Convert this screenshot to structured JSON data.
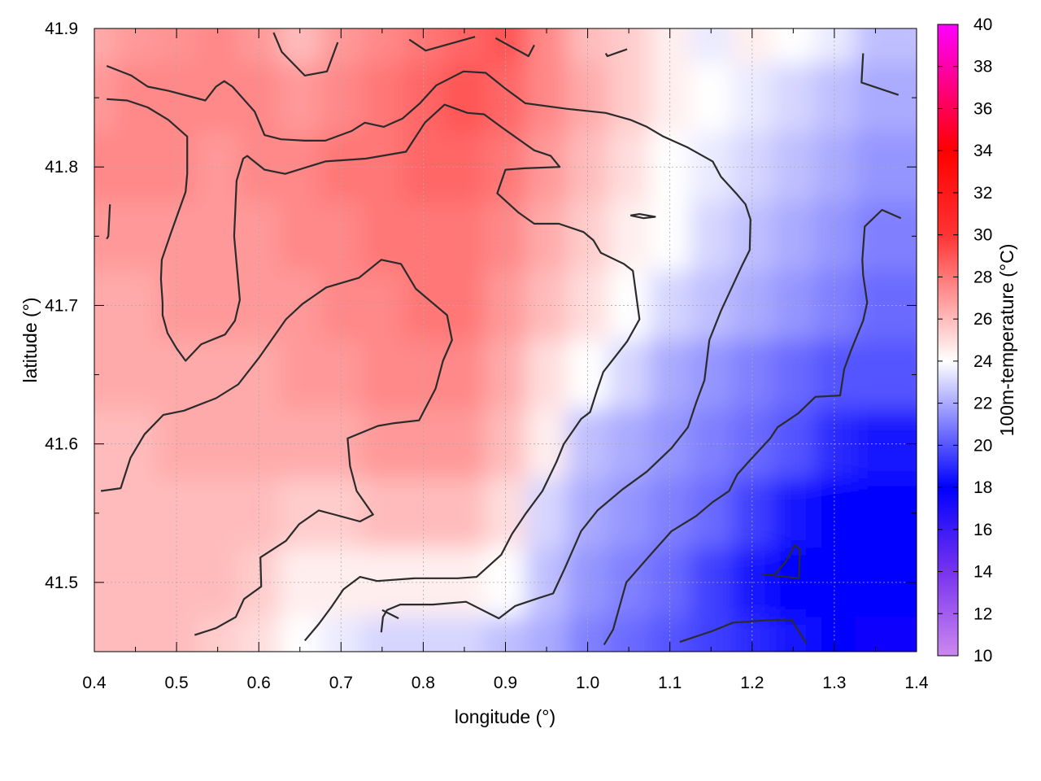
{
  "chart_data": {
    "type": "heatmap",
    "title": "",
    "xlabel": "longitude (°)",
    "ylabel": "latitude (°)",
    "colorbar_label": "100m-temperature (°C)",
    "xlim": [
      0.4,
      1.4
    ],
    "ylim": [
      41.45,
      41.9
    ],
    "x_ticks": [
      "0.4",
      "0.5",
      "0.6",
      "0.7",
      "0.8",
      "0.9",
      "1.0",
      "1.1",
      "1.2",
      "1.3",
      "1.4"
    ],
    "y_ticks": [
      "41.5",
      "41.6",
      "41.7",
      "41.8",
      "41.9"
    ],
    "colorbar_range": [
      10,
      40
    ],
    "colorbar_ticks": [
      "10",
      "12",
      "14",
      "16",
      "18",
      "20",
      "22",
      "24",
      "26",
      "28",
      "30",
      "32",
      "34",
      "36",
      "38",
      "40"
    ],
    "colormap": [
      {
        "value": 10,
        "color": "#cc88ee"
      },
      {
        "value": 14,
        "color": "#7733ee"
      },
      {
        "value": 18,
        "color": "#0000ff"
      },
      {
        "value": 24,
        "color": "#ffffff"
      },
      {
        "value": 30,
        "color": "#ff3333"
      },
      {
        "value": 34,
        "color": "#ff0000"
      },
      {
        "value": 40,
        "color": "#ff00ff"
      }
    ],
    "grid": true,
    "temperature_field": {
      "note_lon": [
        0.4,
        0.45,
        0.5,
        0.55,
        0.6,
        0.65,
        0.7,
        0.75,
        0.8,
        0.85,
        0.9,
        0.95,
        1.0,
        1.05,
        1.1,
        1.15,
        1.2,
        1.25,
        1.3,
        1.35,
        1.4
      ],
      "lat": [
        41.9,
        41.85,
        41.8,
        41.75,
        41.7,
        41.65,
        41.6,
        41.55,
        41.5,
        41.45
      ],
      "values": [
        [
          26.5,
          27.0,
          27.2,
          27.5,
          27.0,
          26.0,
          27.0,
          27.5,
          28.0,
          28.5,
          29.0,
          27.5,
          26.0,
          25.5,
          24.5,
          23.5,
          24.5,
          24.0,
          23.5,
          22.5,
          22.5
        ],
        [
          27.0,
          27.5,
          27.5,
          27.5,
          27.5,
          27.0,
          27.5,
          28.0,
          28.5,
          29.0,
          28.5,
          27.5,
          26.5,
          25.5,
          24.5,
          24.0,
          23.5,
          23.0,
          22.5,
          22.0,
          22.0
        ],
        [
          27.5,
          27.5,
          27.5,
          27.0,
          27.5,
          27.5,
          28.0,
          28.0,
          28.5,
          28.5,
          28.0,
          27.0,
          26.0,
          25.0,
          24.0,
          23.5,
          23.0,
          22.5,
          22.0,
          21.5,
          21.5
        ],
        [
          27.0,
          27.0,
          27.0,
          27.0,
          27.0,
          27.5,
          27.5,
          28.0,
          28.0,
          28.0,
          27.5,
          26.5,
          25.5,
          24.5,
          24.0,
          23.0,
          22.5,
          22.0,
          21.5,
          21.0,
          21.0
        ],
        [
          26.5,
          26.5,
          27.0,
          27.0,
          27.0,
          27.0,
          27.5,
          27.5,
          28.0,
          28.0,
          27.0,
          26.0,
          25.0,
          24.0,
          23.0,
          22.5,
          22.0,
          21.5,
          21.0,
          20.5,
          20.5
        ],
        [
          26.5,
          26.5,
          26.5,
          26.5,
          26.5,
          27.0,
          27.0,
          27.5,
          27.5,
          27.5,
          26.5,
          25.0,
          24.0,
          23.0,
          22.0,
          21.5,
          21.0,
          20.5,
          20.0,
          20.0,
          20.0
        ],
        [
          26.0,
          26.0,
          26.5,
          26.5,
          26.5,
          26.5,
          26.5,
          27.0,
          27.0,
          27.0,
          26.0,
          24.5,
          22.5,
          22.0,
          21.5,
          21.0,
          20.5,
          20.0,
          19.0,
          18.5,
          18.5
        ],
        [
          26.0,
          26.0,
          26.0,
          26.0,
          26.0,
          25.5,
          25.5,
          26.0,
          26.0,
          26.0,
          25.0,
          23.0,
          22.0,
          21.5,
          21.0,
          20.5,
          19.5,
          18.5,
          18.0,
          18.0,
          18.0
        ],
        [
          26.0,
          26.0,
          26.0,
          26.0,
          25.5,
          24.5,
          24.5,
          24.5,
          24.5,
          24.5,
          24.0,
          22.5,
          21.5,
          21.0,
          20.5,
          19.5,
          18.5,
          18.0,
          18.0,
          18.0,
          18.0
        ],
        [
          26.0,
          26.0,
          26.0,
          25.5,
          25.0,
          24.0,
          23.5,
          23.0,
          23.0,
          23.0,
          22.5,
          22.0,
          21.0,
          20.5,
          20.0,
          19.5,
          19.0,
          18.5,
          18.0,
          17.5,
          17.5
        ]
      ]
    },
    "contours": [
      [
        [
          0.415,
          41.873
        ],
        [
          0.445,
          41.866
        ],
        [
          0.465,
          41.858
        ],
        [
          0.49,
          41.855
        ],
        [
          0.535,
          41.848
        ],
        [
          0.548,
          41.858
        ],
        [
          0.558,
          41.862
        ],
        [
          0.568,
          41.858
        ],
        [
          0.595,
          41.84
        ],
        [
          0.607,
          41.823
        ],
        [
          0.627,
          41.82
        ],
        [
          0.656,
          41.819
        ],
        [
          0.681,
          41.819
        ],
        [
          0.713,
          41.826
        ],
        [
          0.729,
          41.832
        ],
        [
          0.752,
          41.829
        ],
        [
          0.775,
          41.835
        ],
        [
          0.796,
          41.846
        ],
        [
          0.816,
          41.859
        ],
        [
          0.849,
          41.869
        ],
        [
          0.876,
          41.868
        ],
        [
          0.899,
          41.857
        ],
        [
          0.924,
          41.846
        ],
        [
          0.974,
          41.842
        ],
        [
          1.022,
          41.839
        ],
        [
          1.052,
          41.834
        ],
        [
          1.072,
          41.829
        ],
        [
          1.092,
          41.822
        ],
        [
          1.122,
          41.814
        ],
        [
          1.152,
          41.804
        ],
        [
          1.162,
          41.793
        ],
        [
          1.182,
          41.78
        ],
        [
          1.192,
          41.773
        ],
        [
          1.198,
          41.762
        ],
        [
          1.197,
          41.74
        ],
        [
          1.187,
          41.728
        ],
        [
          1.162,
          41.696
        ],
        [
          1.148,
          41.675
        ],
        [
          1.142,
          41.646
        ],
        [
          1.132,
          41.63
        ],
        [
          1.122,
          41.612
        ],
        [
          1.102,
          41.597
        ],
        [
          1.072,
          41.58
        ],
        [
          1.042,
          41.567
        ],
        [
          1.012,
          41.552
        ],
        [
          0.992,
          41.537
        ],
        [
          0.972,
          41.51
        ],
        [
          0.958,
          41.492
        ],
        [
          0.942,
          41.489
        ],
        [
          0.912,
          41.483
        ],
        [
          0.892,
          41.474
        ],
        [
          0.852,
          41.486
        ],
        [
          0.812,
          41.484
        ],
        [
          0.772,
          41.484
        ],
        [
          0.756,
          41.48
        ],
        [
          0.751,
          41.475
        ],
        [
          0.749,
          41.464
        ]
      ],
      [
        [
          0.415,
          41.849
        ],
        [
          0.44,
          41.848
        ],
        [
          0.465,
          41.843
        ],
        [
          0.49,
          41.834
        ],
        [
          0.513,
          41.822
        ],
        [
          0.513,
          41.811
        ],
        [
          0.513,
          41.795
        ],
        [
          0.511,
          41.782
        ],
        [
          0.502,
          41.767
        ],
        [
          0.493,
          41.752
        ],
        [
          0.482,
          41.733
        ],
        [
          0.481,
          41.719
        ],
        [
          0.483,
          41.702
        ],
        [
          0.483,
          41.693
        ],
        [
          0.489,
          41.68
        ],
        [
          0.5,
          41.669
        ],
        [
          0.511,
          41.66
        ],
        [
          0.53,
          41.672
        ],
        [
          0.559,
          41.679
        ],
        [
          0.571,
          41.689
        ],
        [
          0.577,
          41.704
        ],
        [
          0.57,
          41.75
        ],
        [
          0.573,
          41.79
        ],
        [
          0.581,
          41.806
        ],
        [
          0.586,
          41.808
        ],
        [
          0.607,
          41.798
        ],
        [
          0.632,
          41.795
        ],
        [
          0.681,
          41.804
        ],
        [
          0.73,
          41.806
        ],
        [
          0.779,
          41.811
        ],
        [
          0.802,
          41.832
        ],
        [
          0.826,
          41.845
        ],
        [
          0.854,
          41.839
        ],
        [
          0.874,
          41.838
        ],
        [
          0.897,
          41.828
        ],
        [
          0.935,
          41.812
        ],
        [
          0.955,
          41.808
        ],
        [
          0.966,
          41.8
        ],
        [
          0.923,
          41.799
        ],
        [
          0.9,
          41.798
        ],
        [
          0.89,
          41.781
        ],
        [
          0.916,
          41.767
        ],
        [
          0.935,
          41.759
        ],
        [
          0.965,
          41.759
        ],
        [
          0.995,
          41.753
        ],
        [
          1.007,
          41.747
        ],
        [
          1.016,
          41.738
        ],
        [
          1.044,
          41.73
        ],
        [
          1.055,
          41.725
        ],
        [
          1.063,
          41.69
        ],
        [
          1.048,
          41.674
        ],
        [
          1.019,
          41.652
        ],
        [
          1.011,
          41.638
        ],
        [
          1.003,
          41.623
        ],
        [
          0.992,
          41.618
        ],
        [
          0.971,
          41.6
        ],
        [
          0.962,
          41.587
        ],
        [
          0.945,
          41.566
        ],
        [
          0.925,
          41.55
        ],
        [
          0.908,
          41.535
        ],
        [
          0.895,
          41.52
        ],
        [
          0.865,
          41.504
        ],
        [
          0.842,
          41.503
        ],
        [
          0.79,
          41.503
        ],
        [
          0.744,
          41.501
        ],
        [
          0.723,
          41.504
        ],
        [
          0.703,
          41.495
        ],
        [
          0.688,
          41.482
        ],
        [
          0.673,
          41.47
        ],
        [
          0.656,
          41.458
        ]
      ],
      [
        [
          0.408,
          41.566
        ],
        [
          0.432,
          41.568
        ],
        [
          0.444,
          41.59
        ],
        [
          0.461,
          41.607
        ],
        [
          0.484,
          41.621
        ],
        [
          0.509,
          41.624
        ],
        [
          0.548,
          41.633
        ],
        [
          0.575,
          41.643
        ],
        [
          0.6,
          41.662
        ],
        [
          0.633,
          41.69
        ],
        [
          0.653,
          41.701
        ],
        [
          0.682,
          41.713
        ],
        [
          0.722,
          41.72
        ],
        [
          0.749,
          41.733
        ],
        [
          0.773,
          41.73
        ],
        [
          0.791,
          41.712
        ],
        [
          0.829,
          41.693
        ],
        [
          0.835,
          41.675
        ],
        [
          0.824,
          41.66
        ],
        [
          0.815,
          41.64
        ],
        [
          0.795,
          41.617
        ],
        [
          0.765,
          41.615
        ],
        [
          0.745,
          41.613
        ],
        [
          0.708,
          41.604
        ],
        [
          0.711,
          41.584
        ],
        [
          0.719,
          41.566
        ],
        [
          0.739,
          41.549
        ],
        [
          0.723,
          41.544
        ],
        [
          0.692,
          41.549
        ],
        [
          0.673,
          41.552
        ],
        [
          0.649,
          41.542
        ],
        [
          0.633,
          41.53
        ],
        [
          0.602,
          41.518
        ],
        [
          0.603,
          41.497
        ],
        [
          0.582,
          41.488
        ],
        [
          0.572,
          41.475
        ],
        [
          0.548,
          41.467
        ],
        [
          0.522,
          41.462
        ]
      ],
      [
        [
          1.02,
          41.455
        ],
        [
          1.031,
          41.466
        ],
        [
          1.047,
          41.5
        ],
        [
          1.075,
          41.519
        ],
        [
          1.102,
          41.537
        ],
        [
          1.132,
          41.548
        ],
        [
          1.152,
          41.558
        ],
        [
          1.172,
          41.566
        ],
        [
          1.182,
          41.578
        ],
        [
          1.197,
          41.588
        ],
        [
          1.222,
          41.604
        ],
        [
          1.231,
          41.612
        ],
        [
          1.256,
          41.622
        ],
        [
          1.277,
          41.634
        ],
        [
          1.307,
          41.635
        ],
        [
          1.312,
          41.654
        ],
        [
          1.32,
          41.667
        ],
        [
          1.335,
          41.689
        ],
        [
          1.34,
          41.702
        ],
        [
          1.335,
          41.722
        ],
        [
          1.334,
          41.733
        ],
        [
          1.337,
          41.757
        ],
        [
          1.358,
          41.769
        ],
        [
          1.381,
          41.763
        ]
      ],
      [
        [
          1.112,
          41.457
        ],
        [
          1.152,
          41.465
        ],
        [
          1.177,
          41.471
        ],
        [
          1.227,
          41.473
        ],
        [
          1.248,
          41.473
        ],
        [
          1.266,
          41.456
        ]
      ],
      [
        [
          1.212,
          41.506
        ],
        [
          1.257,
          41.503
        ],
        [
          1.258,
          41.524
        ],
        [
          1.252,
          41.527
        ],
        [
          1.241,
          41.515
        ],
        [
          1.228,
          41.506
        ]
      ],
      [
        [
          1.052,
          41.765
        ],
        [
          1.068,
          41.763
        ],
        [
          1.082,
          41.764
        ],
        [
          1.063,
          41.766
        ],
        [
          1.052,
          41.765
        ]
      ],
      [
        [
          0.618,
          41.897
        ],
        [
          0.628,
          41.883
        ],
        [
          0.656,
          41.866
        ],
        [
          0.683,
          41.869
        ],
        [
          0.696,
          41.89
        ]
      ],
      [
        [
          0.783,
          41.892
        ],
        [
          0.803,
          41.884
        ],
        [
          0.863,
          41.894
        ]
      ],
      [
        [
          0.888,
          41.893
        ],
        [
          0.928,
          41.88
        ],
        [
          0.935,
          41.888
        ]
      ],
      [
        [
          1.022,
          41.882
        ],
        [
          1.024,
          41.88
        ],
        [
          1.048,
          41.885
        ]
      ],
      [
        [
          1.335,
          41.882
        ],
        [
          1.333,
          41.861
        ],
        [
          1.378,
          41.852
        ]
      ],
      [
        [
          0.419,
          41.773
        ],
        [
          0.417,
          41.75
        ],
        [
          0.415,
          41.748
        ]
      ],
      [
        [
          0.75,
          41.48
        ],
        [
          0.77,
          41.474
        ]
      ]
    ]
  }
}
